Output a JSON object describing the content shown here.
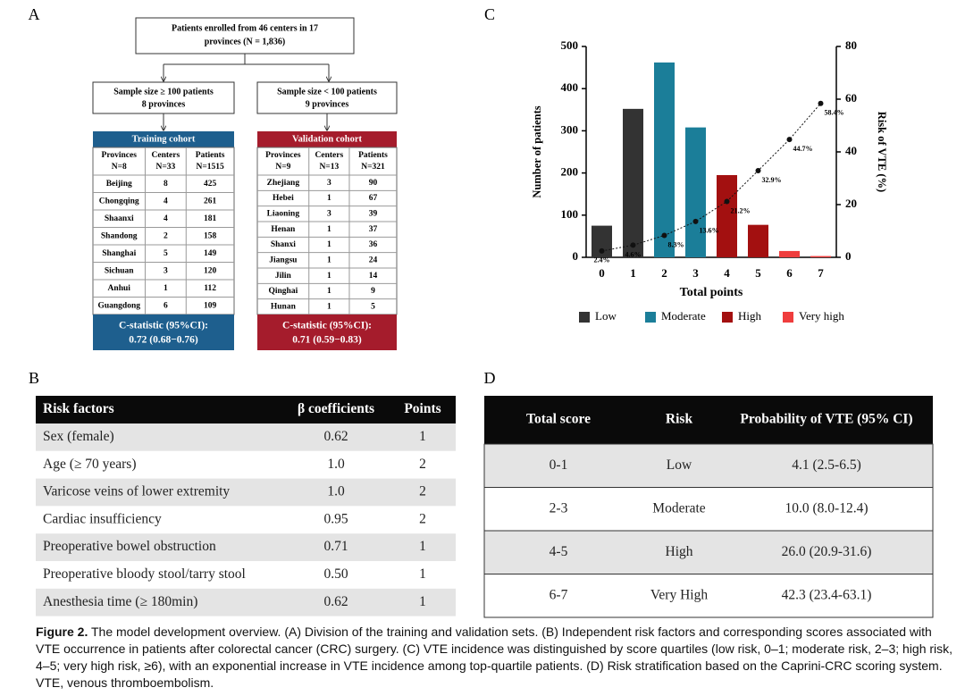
{
  "panel_labels": [
    "A",
    "B",
    "C",
    "D"
  ],
  "panel_a": {
    "enrolled": [
      "Patients enrolled from 46 centers in 17",
      "provinces (N = 1,836)"
    ],
    "groups": [
      {
        "criterion": "Sample size ≥ 100 patients",
        "count": "8 provinces"
      },
      {
        "criterion": "Sample size  < 100 patients",
        "count": "9 provinces"
      }
    ],
    "cohorts": [
      {
        "title": "Training cohort",
        "color": "#1e5f8e",
        "columns": [
          [
            "Provinces",
            "N=8"
          ],
          [
            "Centers",
            "N=33"
          ],
          [
            "Patients",
            "N=1515"
          ]
        ],
        "rows": [
          [
            "Beijing",
            "8",
            "425"
          ],
          [
            "Chongqing",
            "4",
            "261"
          ],
          [
            "Shaanxi",
            "4",
            "181"
          ],
          [
            "Shandong",
            "2",
            "158"
          ],
          [
            "Shanghai",
            "5",
            "149"
          ],
          [
            "Sichuan",
            "3",
            "120"
          ],
          [
            "Anhui",
            "1",
            "112"
          ],
          [
            "Guangdong",
            "6",
            "109"
          ]
        ],
        "c_statistic": [
          "C-statistic (95%CI):",
          "0.72 (0.68−0.76)"
        ]
      },
      {
        "title": "Validation cohort",
        "color": "#a51c2c",
        "columns": [
          [
            "Provinces",
            "N=9"
          ],
          [
            "Centers",
            "N=13"
          ],
          [
            "Patients",
            "N=321"
          ]
        ],
        "rows": [
          [
            "Zhejiang",
            "3",
            "90"
          ],
          [
            "Hebei",
            "1",
            "67"
          ],
          [
            "Liaoning",
            "3",
            "39"
          ],
          [
            "Henan",
            "1",
            "37"
          ],
          [
            "Shanxi",
            "1",
            "36"
          ],
          [
            "Jiangsu",
            "1",
            "24"
          ],
          [
            "Jilin",
            "1",
            "14"
          ],
          [
            "Qinghai",
            "1",
            "9"
          ],
          [
            "Hunan",
            "1",
            "5"
          ]
        ],
        "c_statistic": [
          "C-statistic (95%CI):",
          "0.71 (0.59−0.83)"
        ]
      }
    ]
  },
  "panel_b": {
    "columns": [
      "Risk factors",
      "β coefficients",
      "Points"
    ],
    "rows": [
      [
        "Sex (female)",
        "0.62",
        "1"
      ],
      [
        "Age (≥ 70 years)",
        "1.0",
        "2"
      ],
      [
        "Varicose veins of lower extremity",
        "1.0",
        "2"
      ],
      [
        "Cardiac insufficiency",
        "0.95",
        "2"
      ],
      [
        "Preoperative bowel obstruction",
        "0.71",
        "1"
      ],
      [
        "Preoperative bloody stool/tarry stool",
        "0.50",
        "1"
      ],
      [
        "Anesthesia time (≥ 180min)",
        "0.62",
        "1"
      ]
    ]
  },
  "chart_data": {
    "type": "bar_line",
    "categories": [
      "0",
      "1",
      "2",
      "3",
      "4",
      "5",
      "6",
      "7"
    ],
    "series": [
      {
        "type": "bar",
        "values": [
          75,
          352,
          462,
          308,
          195,
          77,
          15,
          3
        ],
        "colors": [
          "#333333",
          "#333333",
          "#1b7e99",
          "#1b7e99",
          "#a31010",
          "#a31010",
          "#ef3d3d",
          "#ef3d3d"
        ]
      },
      {
        "type": "line",
        "axis": "y2",
        "color": "#111111",
        "values": [
          2.4,
          4.6,
          8.3,
          13.6,
          21.2,
          32.9,
          44.7,
          58.4
        ],
        "value_labels": [
          "2.4%",
          "4.6%",
          "8.3%",
          "13.6%",
          "21.2%",
          "32.9%",
          "44.7%",
          "58.4%"
        ]
      }
    ],
    "legend": [
      {
        "name": "Low",
        "color": "#333333"
      },
      {
        "name": "Moderate",
        "color": "#1b7e99"
      },
      {
        "name": "High",
        "color": "#a31010"
      },
      {
        "name": "Very high",
        "color": "#ef3d3d"
      }
    ],
    "legend_position": "bottom",
    "ylabel": "Number of patients",
    "y2label": "Risk of VTE (%)",
    "xlabel": "Total points",
    "ylim": [
      0,
      500
    ],
    "yticks": [
      0,
      100,
      200,
      300,
      400,
      500
    ],
    "y2lim": [
      0,
      80
    ],
    "y2ticks": [
      0,
      20,
      40,
      60,
      80
    ]
  },
  "panel_d": {
    "columns": [
      "Total score",
      "Risk",
      "Probability of VTE (95% CI)"
    ],
    "rows": [
      [
        "0-1",
        "Low",
        "4.1 (2.5-6.5)"
      ],
      [
        "2-3",
        "Moderate",
        "10.0 (8.0-12.4)"
      ],
      [
        "4-5",
        "High",
        "26.0 (20.9-31.6)"
      ],
      [
        "6-7",
        "Very High",
        "42.3 (23.4-63.1)"
      ]
    ]
  },
  "caption": {
    "label": "Figure 2.",
    "text": "The model development overview. (A) Division of the training and validation sets. (B) Independent risk factors and corresponding scores associated with VTE occurrence in patients after colorectal cancer (CRC) surgery. (C) VTE incidence was distinguished by score quartiles (low risk, 0–1; moderate risk, 2–3; high risk, 4–5; very high risk, ≥6), with an exponential increase in VTE incidence among top-quartile patients. (D) Risk stratification based on the Caprini-CRC scoring system. VTE, venous thromboembolism."
  }
}
